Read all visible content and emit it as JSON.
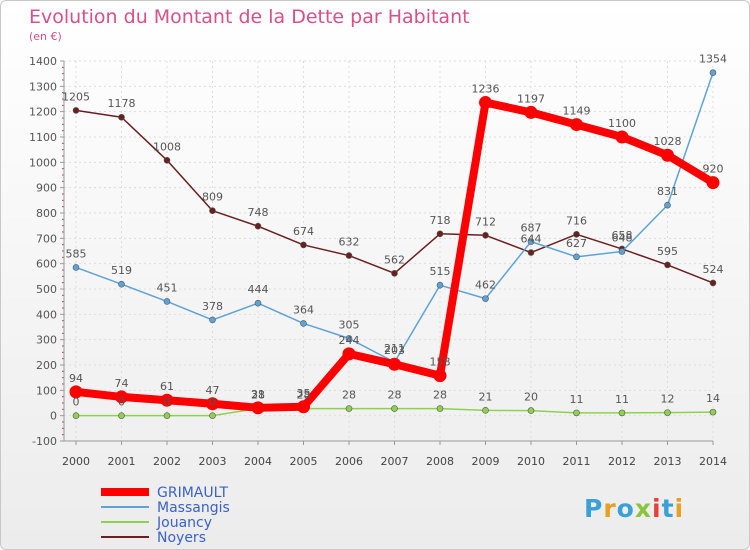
{
  "header": {
    "title": "Evolution du Montant de la Dette par Habitant",
    "subtitle": "(en €)"
  },
  "logo": {
    "text": "Proxiti",
    "letters": [
      "P",
      "r",
      "o",
      "x",
      "i",
      "t",
      "i"
    ]
  },
  "chart_data": {
    "type": "line",
    "x": [
      2000,
      2001,
      2002,
      2003,
      2004,
      2005,
      2006,
      2007,
      2008,
      2009,
      2010,
      2011,
      2012,
      2013,
      2014
    ],
    "ylim": [
      -100,
      1400
    ],
    "yticks": [
      -100,
      0,
      100,
      200,
      300,
      400,
      500,
      600,
      700,
      800,
      900,
      1000,
      1100,
      1200,
      1300,
      1400
    ],
    "grid": true,
    "legend": "bottom-left",
    "series": [
      {
        "name": "GRIMAULT",
        "color": "#ff0000",
        "values": [
          94,
          74,
          61,
          47,
          31,
          35,
          244,
          203,
          158,
          1236,
          1197,
          1149,
          1100,
          1028,
          920
        ]
      },
      {
        "name": "Massangis",
        "color": "#5da3d8",
        "values": [
          585,
          519,
          451,
          378,
          444,
          364,
          305,
          211,
          515,
          462,
          687,
          627,
          648,
          831,
          1354
        ]
      },
      {
        "name": "Jouancy",
        "color": "#8fd14f",
        "values": [
          0,
          0,
          0,
          0,
          28,
          28,
          28,
          28,
          28,
          21,
          20,
          11,
          11,
          12,
          14
        ]
      },
      {
        "name": "Noyers",
        "color": "#6b1f1f",
        "values": [
          1205,
          1178,
          1008,
          809,
          748,
          674,
          632,
          562,
          718,
          712,
          644,
          716,
          658,
          595,
          524
        ]
      }
    ]
  }
}
